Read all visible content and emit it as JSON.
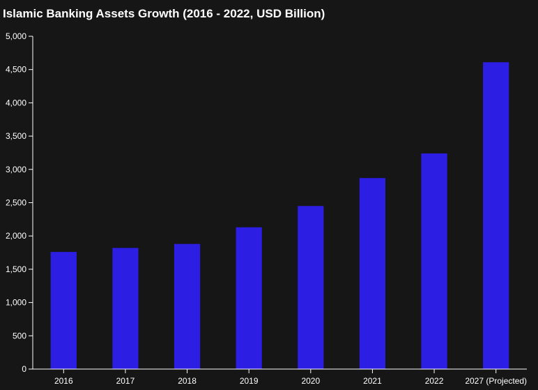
{
  "chart_data": {
    "type": "bar",
    "title": "Islamic Banking Assets Growth (2016 - 2022, USD Billion)",
    "xlabel": "",
    "ylabel": "",
    "categories": [
      "2016",
      "2017",
      "2018",
      "2019",
      "2020",
      "2021",
      "2022",
      "2027 (Projected)"
    ],
    "values": [
      1760,
      1820,
      1880,
      2130,
      2450,
      2870,
      3240,
      4610
    ],
    "ylim": [
      0,
      5000
    ],
    "yticks": [
      0,
      500,
      1000,
      1500,
      2000,
      2500,
      3000,
      3500,
      4000,
      4500,
      5000
    ],
    "ytick_labels": [
      "0",
      "500",
      "1,000",
      "1,500",
      "2,000",
      "2,500",
      "3,000",
      "3,500",
      "4,000",
      "4,500",
      "5,000"
    ],
    "grid": false,
    "legend": "none",
    "colors": {
      "bar": "#2c1ee3",
      "background": "#161616",
      "text": "#ffffff"
    }
  }
}
